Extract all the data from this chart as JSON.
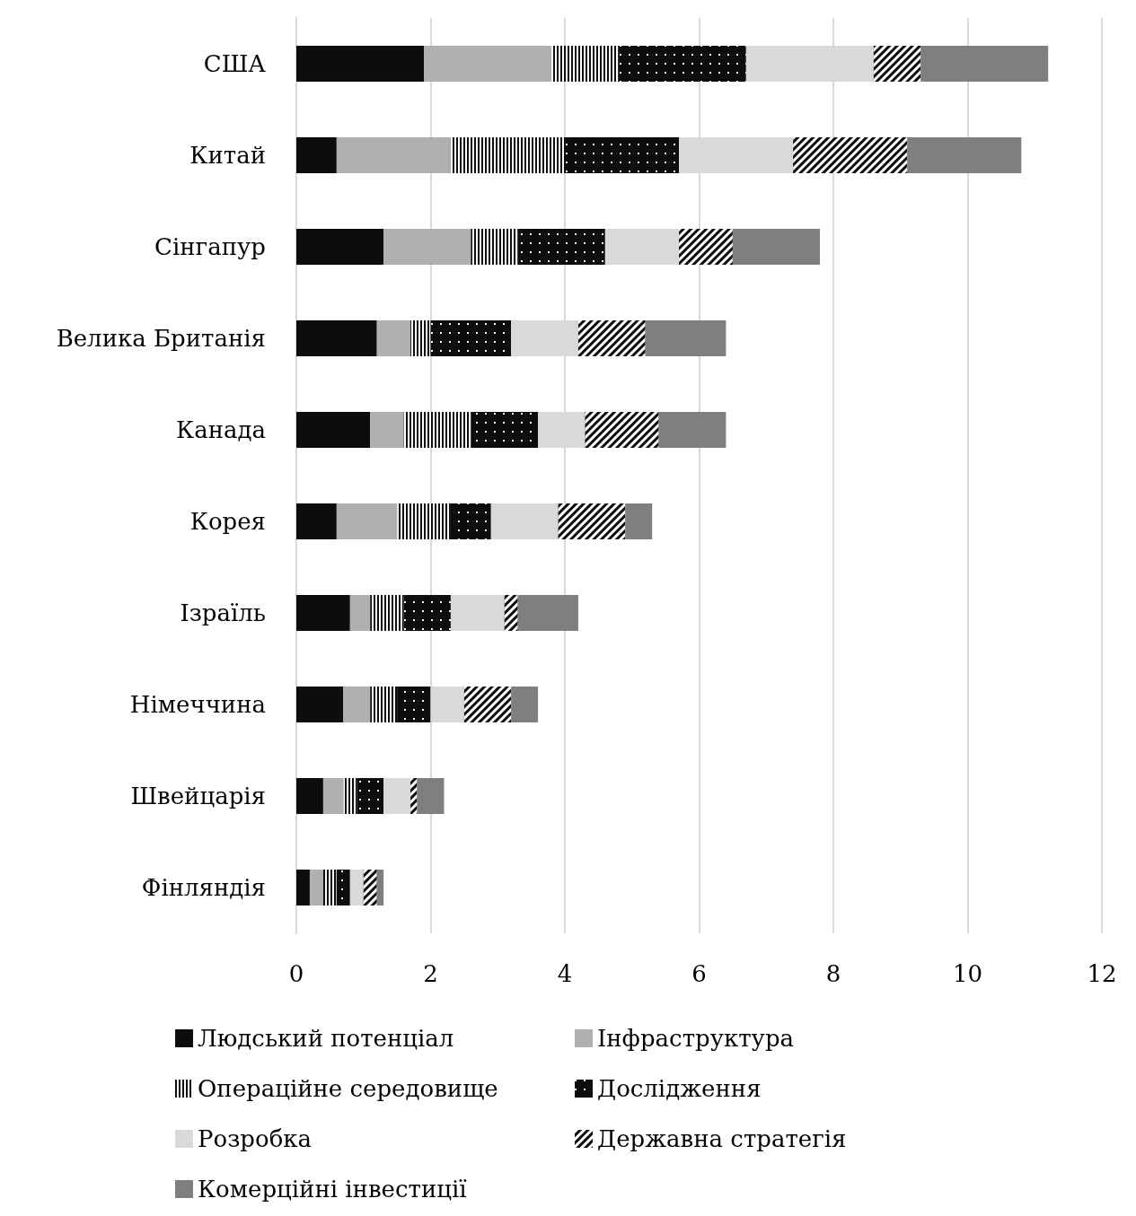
{
  "chart_data": {
    "type": "bar",
    "orientation": "horizontal",
    "stacked": true,
    "categories": [
      "США",
      "Китай",
      "Сінгапур",
      "Велика Британія",
      "Канада",
      "Корея",
      "Ізраїль",
      "Німеччина",
      "Швейцарія",
      "Фінляндія"
    ],
    "series": [
      {
        "name": "Людський потенціал",
        "color": "#0d0d0d",
        "values": [
          1.9,
          0.6,
          1.3,
          1.2,
          1.1,
          0.6,
          0.8,
          0.7,
          0.4,
          0.2
        ]
      },
      {
        "name": "Інфраструктура",
        "color": "#b0b0b0",
        "values": [
          1.9,
          1.7,
          1.3,
          0.5,
          0.5,
          0.9,
          0.3,
          0.4,
          0.3,
          0.2
        ]
      },
      {
        "name": "Операційне середовище",
        "color": "#0d0d0d",
        "values": [
          1.0,
          1.7,
          0.7,
          0.3,
          1.0,
          0.8,
          0.5,
          0.4,
          0.2,
          0.2
        ]
      },
      {
        "name": "Дослідження",
        "color": "#0d0d0d",
        "values": [
          1.9,
          1.7,
          1.3,
          1.2,
          1.0,
          0.6,
          0.7,
          0.5,
          0.4,
          0.2
        ]
      },
      {
        "name": "Розробка",
        "color": "#d9d9d9",
        "values": [
          1.9,
          1.7,
          1.1,
          1.0,
          0.7,
          1.0,
          0.8,
          0.5,
          0.4,
          0.2
        ]
      },
      {
        "name": "Державна стратегія",
        "color": "#0d0d0d",
        "values": [
          0.7,
          1.7,
          0.8,
          1.0,
          1.1,
          1.0,
          0.2,
          0.7,
          0.1,
          0.2
        ]
      },
      {
        "name": "Комерційні інвестиції",
        "color": "#7f7f7f",
        "values": [
          1.9,
          1.7,
          1.3,
          1.2,
          1.0,
          0.4,
          0.9,
          0.4,
          0.4,
          0.1
        ]
      }
    ],
    "xlim": [
      0,
      12
    ],
    "xticks": [
      0,
      2,
      4,
      6,
      8,
      10,
      12
    ],
    "grid": "x",
    "legend": "bottom"
  }
}
